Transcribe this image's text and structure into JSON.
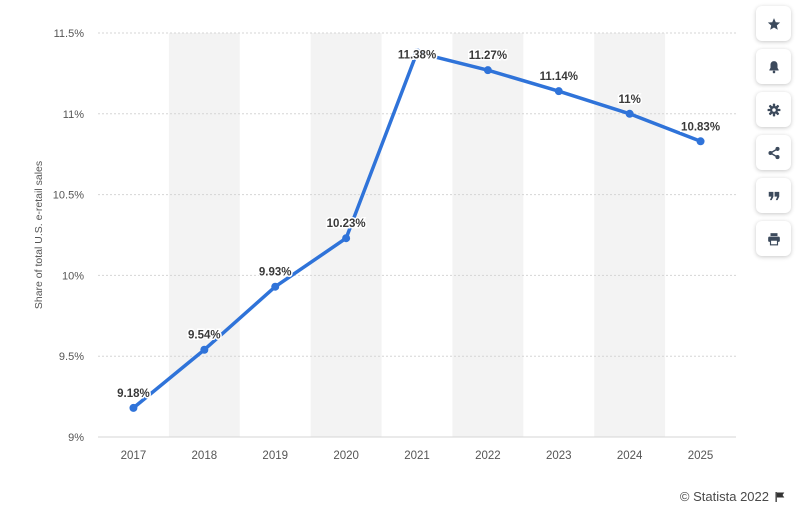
{
  "chart_data": {
    "type": "line",
    "categories": [
      "2017",
      "2018",
      "2019",
      "2020",
      "2021",
      "2022",
      "2023",
      "2024",
      "2025"
    ],
    "values": [
      9.18,
      9.54,
      9.93,
      10.23,
      11.38,
      11.27,
      11.14,
      11.0,
      10.83
    ],
    "data_labels": [
      "9.18%",
      "9.54%",
      "9.93%",
      "10.23%",
      "11.38%",
      "11.27%",
      "11.14%",
      "11%",
      "10.83%"
    ],
    "ylabel": "Share of total U.S. e-retail sales",
    "xlabel": "",
    "title": "",
    "ylim": [
      9,
      11.5
    ],
    "yticks": [
      9,
      9.5,
      10,
      10.5,
      11,
      11.5
    ],
    "ytick_labels": [
      "9%",
      "9.5%",
      "10%",
      "10.5%",
      "11%",
      "11.5%"
    ],
    "grid": true,
    "legend": "none",
    "colors": {
      "line": "#2f73d9",
      "band": "#f3f3f3",
      "grid": "#d5d5d5",
      "text": "#555555"
    }
  },
  "toolbar": {
    "items": [
      {
        "name": "favorite",
        "icon": "star-icon"
      },
      {
        "name": "notification",
        "icon": "bell-icon"
      },
      {
        "name": "settings",
        "icon": "gear-icon"
      },
      {
        "name": "share",
        "icon": "share-icon"
      },
      {
        "name": "cite",
        "icon": "quote-icon"
      },
      {
        "name": "print",
        "icon": "print-icon"
      }
    ],
    "icon_color": "#3c4a5c"
  },
  "credit": {
    "text": "© Statista 2022",
    "icon": "flag-icon"
  }
}
